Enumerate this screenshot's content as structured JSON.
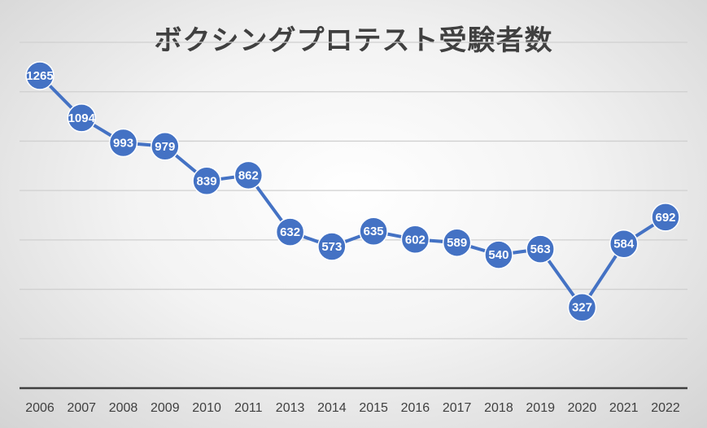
{
  "chart_data": {
    "type": "line",
    "title": "ボクシングプロテスト受験者数",
    "categories": [
      "2006",
      "2007",
      "2008",
      "2009",
      "2010",
      "2011",
      "2013",
      "2014",
      "2015",
      "2016",
      "2017",
      "2018",
      "2019",
      "2020",
      "2021",
      "2022"
    ],
    "series": [
      {
        "values": [
          1265,
          1094,
          993,
          979,
          839,
          862,
          632,
          573,
          635,
          602,
          589,
          540,
          563,
          327,
          584,
          692
        ]
      }
    ],
    "ylim": [
      0,
      1400
    ],
    "grid": true,
    "data_labels": true,
    "xlabel": "",
    "ylabel": "",
    "colors": {
      "line": "#4472C4",
      "marker": "#4472C4",
      "grid": "#d0d0d0",
      "axis": "#404040",
      "label": "#ffffff"
    }
  }
}
